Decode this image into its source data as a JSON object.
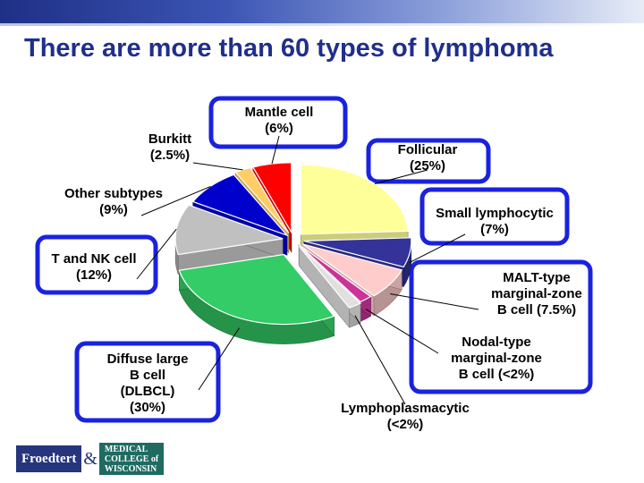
{
  "slide": {
    "title": "There are more than 60 types of lymphoma"
  },
  "logo": {
    "left": "Froedtert",
    "amp": "&",
    "right_line1": "MEDICAL",
    "right_line2": "COLLEGE of",
    "right_line3": "WISCONSIN"
  },
  "chart_data": {
    "type": "pie",
    "slices": [
      {
        "label_lines": [
          "Follicular",
          "(25%)"
        ],
        "value": 25,
        "color": "#ffff99",
        "boxed": true
      },
      {
        "label_lines": [
          "Small lymphocytic",
          "(7%)"
        ],
        "value": 7,
        "color": "#333399",
        "boxed": true
      },
      {
        "label_lines": [
          "MALT-type",
          "marginal-zone",
          "B cell (7.5%)"
        ],
        "value": 7.5,
        "color": "#ffcccc",
        "boxed": true
      },
      {
        "label_lines": [
          "Nodal-type",
          "marginal-zone",
          "B cell (<2%)"
        ],
        "value": 2,
        "color": "#cc3399",
        "boxed": true
      },
      {
        "label_lines": [
          "Lymphoplasmacytic",
          "(<2%)"
        ],
        "value": 2,
        "color": "#e0e0e0",
        "boxed": false
      },
      {
        "label_lines": [
          "Diffuse large",
          "B cell",
          "(DLBCL)",
          "(30%)"
        ],
        "value": 30,
        "color": "#33cc66",
        "boxed": true
      },
      {
        "label_lines": [
          "T and NK cell",
          "(12%)"
        ],
        "value": 12,
        "color": "#c0c0c0",
        "boxed": true
      },
      {
        "label_lines": [
          "Other subtypes",
          "(9%)"
        ],
        "value": 9,
        "color": "#0000cc",
        "boxed": false
      },
      {
        "label_lines": [
          "Burkitt",
          "(2.5%)"
        ],
        "value": 2.5,
        "color": "#ffcc66",
        "boxed": false
      },
      {
        "label_lines": [
          "Mantle cell",
          "(6%)"
        ],
        "value": 6,
        "color": "#ff0000",
        "boxed": true
      }
    ],
    "box_color": "#1a22e0"
  }
}
